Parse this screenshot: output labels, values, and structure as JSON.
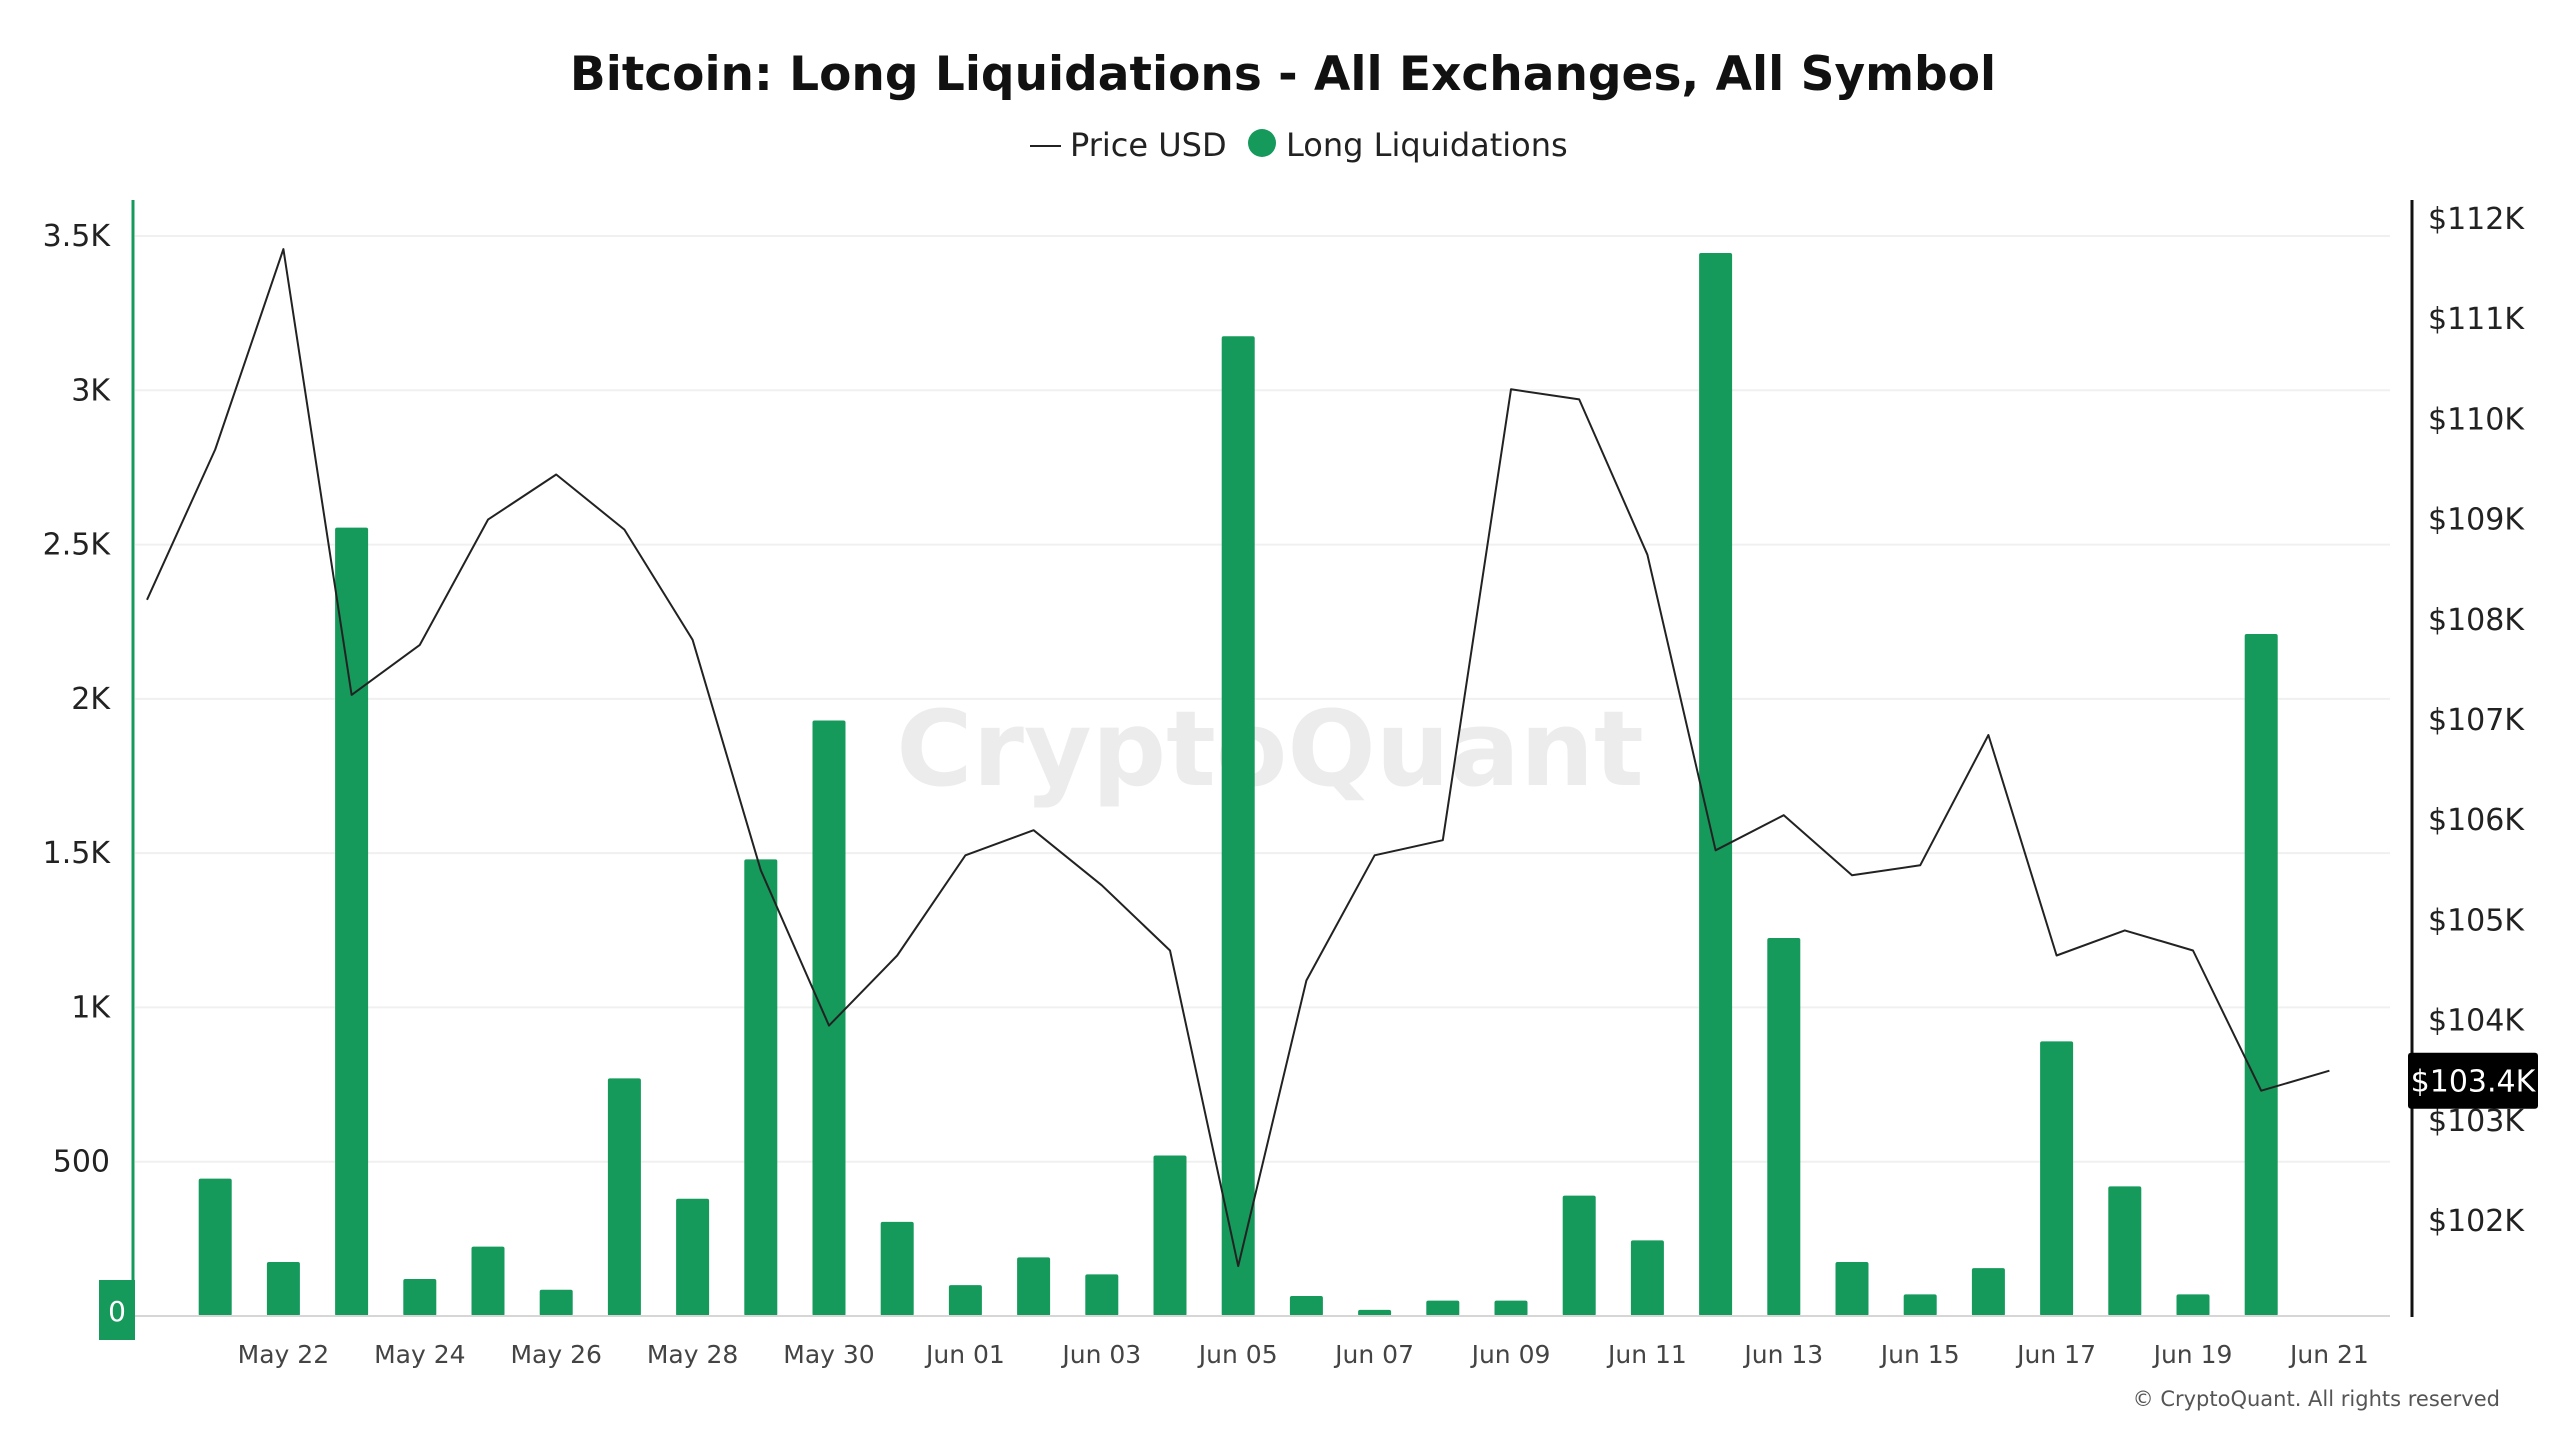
{
  "chart_data": {
    "type": "bar",
    "title": "Bitcoin: Long Liquidations - All Exchanges, All Symbol",
    "legend": [
      {
        "name": "Price USD",
        "marker": "line"
      },
      {
        "name": "Long Liquidations",
        "marker": "dot"
      }
    ],
    "legend_position": "top-center",
    "xlabel": "",
    "ylabel_left": "",
    "ylabel_right": "",
    "x_tick_labels": [
      "May 22",
      "May 24",
      "May 26",
      "May 28",
      "May 30",
      "Jun 01",
      "Jun 03",
      "Jun 05",
      "Jun 07",
      "Jun 09",
      "Jun 11",
      "Jun 13",
      "Jun 15",
      "Jun 17",
      "Jun 19",
      "Jun 21"
    ],
    "y_left_tick_labels": [
      "0",
      "500",
      "1K",
      "1.5K",
      "2K",
      "2.5K",
      "3K",
      "3.5K"
    ],
    "y_left_range": [
      0,
      3500
    ],
    "y_right_tick_labels": [
      "$102K",
      "$103K",
      "$104K",
      "$105K",
      "$106K",
      "$107K",
      "$108K",
      "$109K",
      "$110K",
      "$111K",
      "$112K"
    ],
    "y_right_range": [
      101100,
      112000
    ],
    "grid": true,
    "series": [
      {
        "name": "Long Liquidations",
        "type": "bar",
        "axis": "left",
        "color": "#159a5b",
        "dates": [
          "May 21",
          "May 22",
          "May 23",
          "May 24",
          "May 25",
          "May 26",
          "May 27",
          "May 28",
          "May 29",
          "May 30",
          "May 31",
          "Jun 01",
          "Jun 02",
          "Jun 03",
          "Jun 04",
          "Jun 05",
          "Jun 06",
          "Jun 07",
          "Jun 08",
          "Jun 09",
          "Jun 10",
          "Jun 11",
          "Jun 12",
          "Jun 13",
          "Jun 14",
          "Jun 15",
          "Jun 16",
          "Jun 17",
          "Jun 18",
          "Jun 19",
          "Jun 20"
        ],
        "values": [
          445,
          175,
          2555,
          120,
          225,
          85,
          770,
          380,
          1480,
          1930,
          305,
          100,
          190,
          135,
          520,
          3175,
          65,
          20,
          50,
          50,
          390,
          245,
          3445,
          1225,
          175,
          70,
          155,
          890,
          420,
          70,
          2210
        ]
      },
      {
        "name": "Price USD",
        "type": "line",
        "axis": "right",
        "color": "#222222",
        "dates": [
          "May 20",
          "May 21",
          "May 22",
          "May 23",
          "May 24",
          "May 25",
          "May 26",
          "May 27",
          "May 28",
          "May 29",
          "May 30",
          "May 31",
          "Jun 01",
          "Jun 02",
          "Jun 03",
          "Jun 04",
          "Jun 05",
          "Jun 06",
          "Jun 07",
          "Jun 08",
          "Jun 09",
          "Jun 10",
          "Jun 11",
          "Jun 12",
          "Jun 13",
          "Jun 14",
          "Jun 15",
          "Jun 16",
          "Jun 17",
          "Jun 18",
          "Jun 19",
          "Jun 20",
          "Jun 21"
        ],
        "values": [
          108200,
          109700,
          111700,
          107250,
          107750,
          109000,
          109450,
          108900,
          107800,
          105500,
          103950,
          104650,
          105650,
          105900,
          105350,
          104700,
          101550,
          104400,
          105650,
          105800,
          110300,
          110200,
          108650,
          105700,
          106050,
          105450,
          105550,
          106850,
          104650,
          104900,
          104700,
          103300,
          103500
        ]
      }
    ],
    "current_price_label": "$103.4K",
    "current_price_value": 103400,
    "zero_label": "0"
  },
  "watermark": "CryptoQuant",
  "copyright": "© CryptoQuant. All rights reserved",
  "colors": {
    "bar": "#159a5b",
    "line": "#222222",
    "left_axis": "#159a5b",
    "right_axis": "#111111",
    "grid": "#f0f0f0",
    "price_label_bg": "#000000"
  }
}
